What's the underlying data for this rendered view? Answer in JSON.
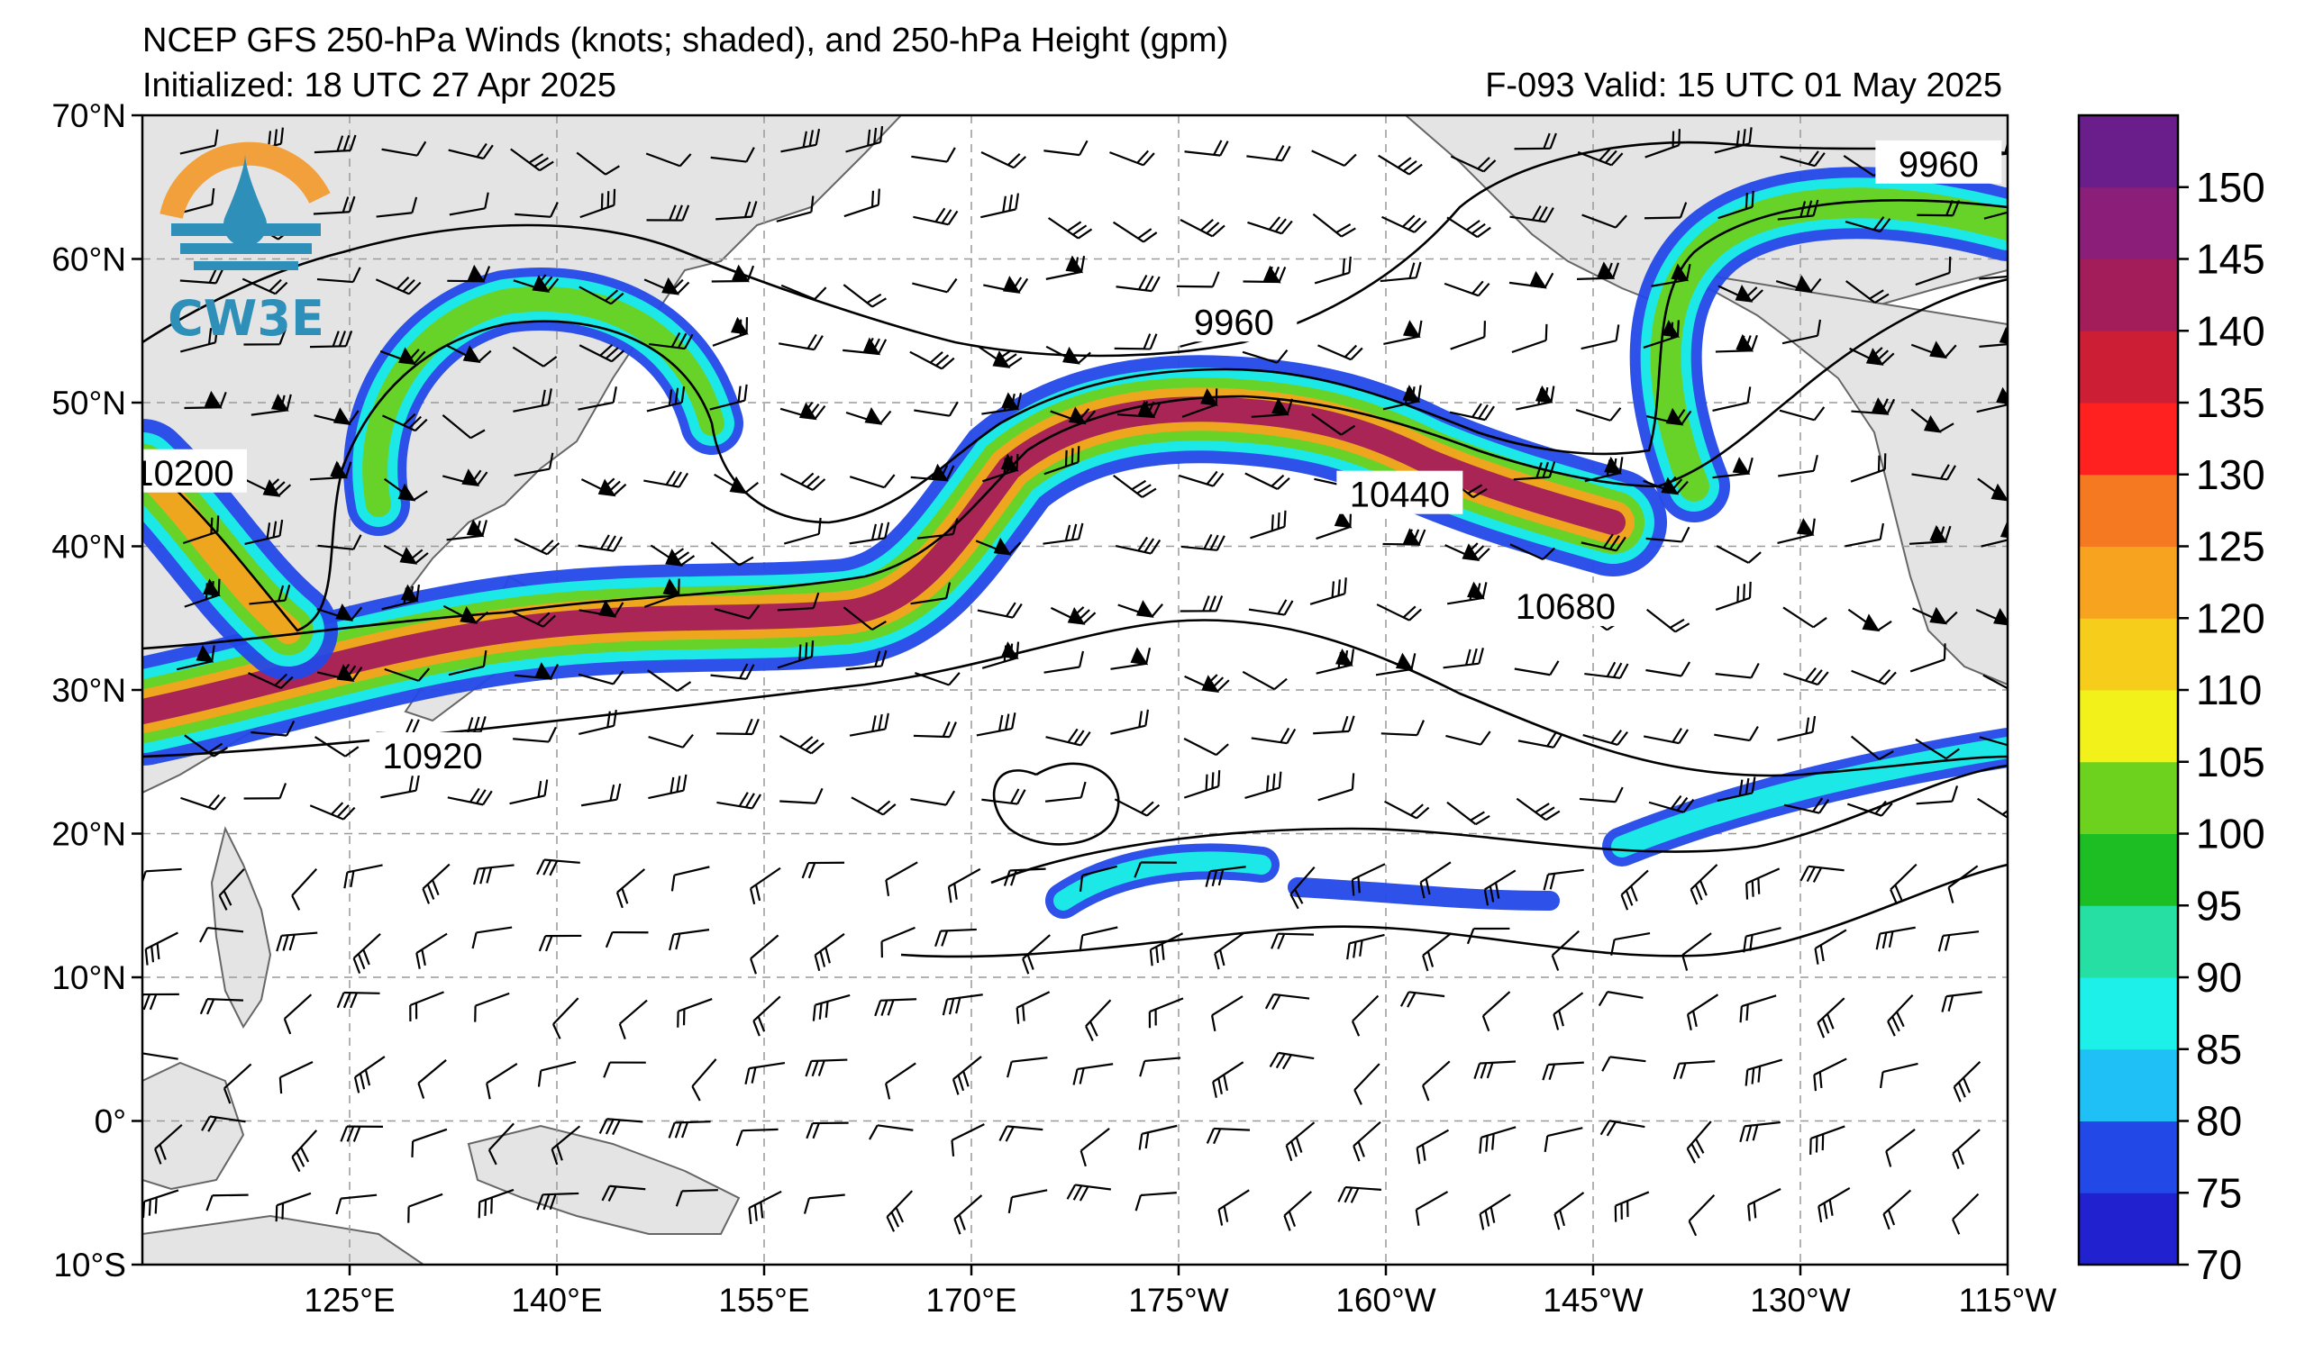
{
  "header": {
    "title": "NCEP GFS 250-hPa Winds (knots; shaded), and 250-hPa Height (gpm)",
    "initialized": "Initialized: 18 UTC 27 Apr 2025",
    "valid": "F-093  Valid: 15 UTC 01 May 2025"
  },
  "logo": {
    "text": "CW3E",
    "colors": [
      "#f2a03c",
      "#2e8fb8"
    ]
  },
  "axes": {
    "lat_labels": [
      "70°N",
      "60°N",
      "50°N",
      "40°N",
      "30°N",
      "20°N",
      "10°N",
      "0°",
      "10°S"
    ],
    "lon_labels": [
      "125°E",
      "140°E",
      "155°E",
      "170°E",
      "175°W",
      "160°W",
      "145°W",
      "130°W",
      "115°W"
    ]
  },
  "contours": {
    "labels": [
      {
        "text": "9960",
        "lon": -120,
        "lat": 66.5
      },
      {
        "text": "9960",
        "lon": -171,
        "lat": 55.5
      },
      {
        "text": "10200",
        "lon": 113,
        "lat": 45
      },
      {
        "text": "10440",
        "lon": -159,
        "lat": 43.5
      },
      {
        "text": "10680",
        "lon": -147,
        "lat": 35.7
      },
      {
        "text": "10920",
        "lon": 131,
        "lat": 25.3
      }
    ]
  },
  "colorbar": {
    "ticks": [
      "70",
      "75",
      "80",
      "85",
      "90",
      "95",
      "100",
      "105",
      "110",
      "120",
      "125",
      "130",
      "135",
      "140",
      "145",
      "150"
    ],
    "colors": [
      "#2121cf",
      "#2348e8",
      "#1ec0f5",
      "#1cf0e8",
      "#25e0a2",
      "#1dbd24",
      "#6cd21e",
      "#f2f21a",
      "#f6cd1b",
      "#f7a31f",
      "#f57920",
      "#ff2020",
      "#cc1e35",
      "#a31d5a",
      "#8b1e78",
      "#6a1e8c"
    ]
  },
  "colors": {
    "land": "#e4e4e4",
    "coast": "#666666",
    "grid": "#999999"
  }
}
